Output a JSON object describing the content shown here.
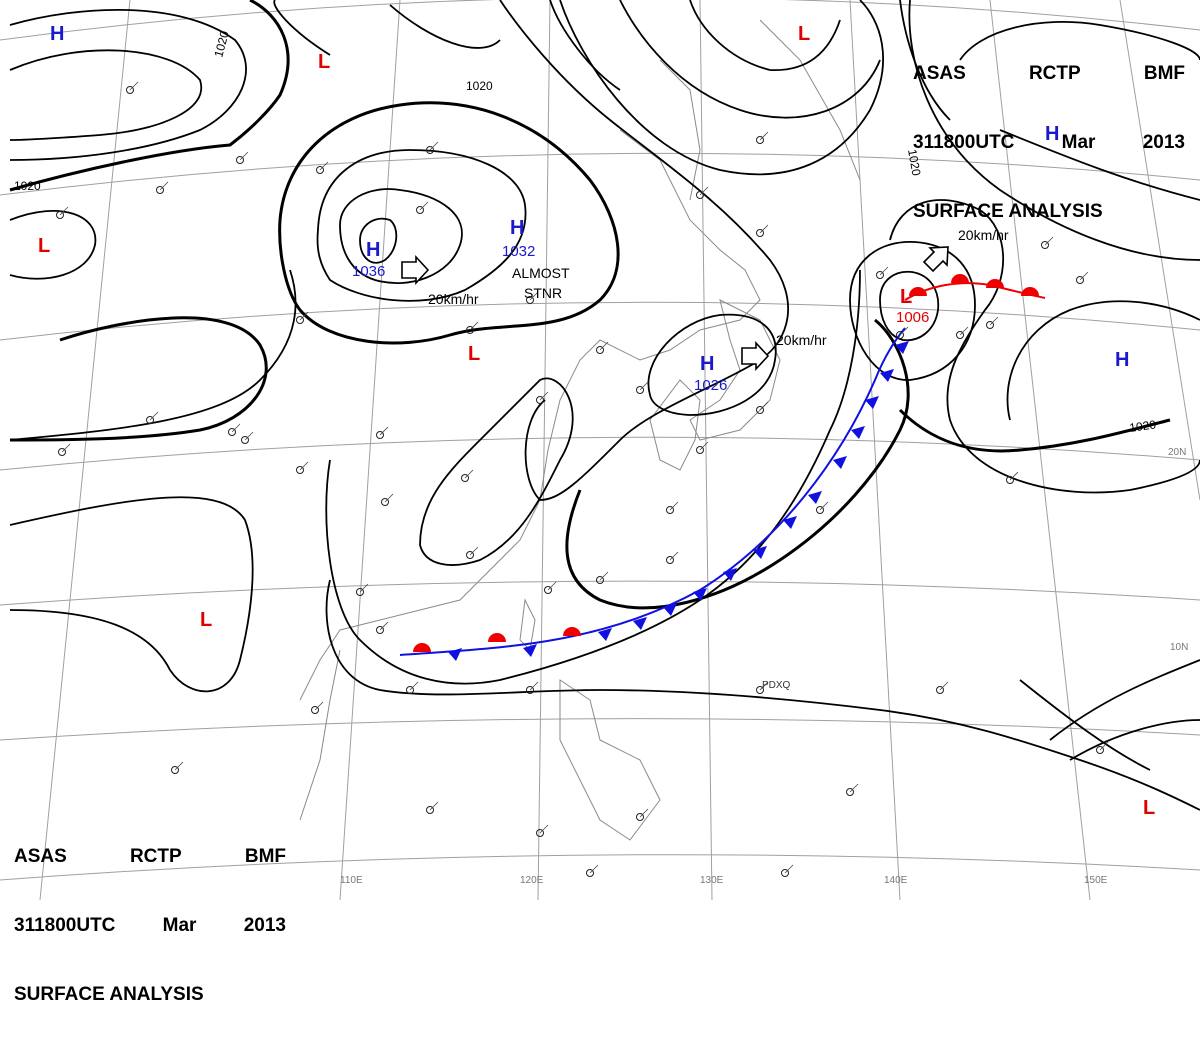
{
  "header": {
    "line1": [
      "ASAS",
      "RCTP",
      "BMF"
    ],
    "line2": [
      "311800UTC",
      "Mar",
      "2013"
    ],
    "line3": "SURFACE ANALYSIS"
  },
  "colors": {
    "high": "#1a1acc",
    "low": "#e00000",
    "isobar": "#000000",
    "cold_front": "#1010e0",
    "warm_front": "#ee0000",
    "grid": "#9a9a9a",
    "coast": "#888888"
  },
  "pressure_centers": [
    {
      "type": "H",
      "value": "1036"
    },
    {
      "type": "H",
      "value": "1032"
    },
    {
      "type": "H",
      "value": "1026"
    },
    {
      "type": "L",
      "value": "1006"
    },
    {
      "type": "H",
      "value": ""
    },
    {
      "type": "H",
      "value": ""
    },
    {
      "type": "H",
      "value": ""
    },
    {
      "type": "L",
      "value": ""
    },
    {
      "type": "L",
      "value": ""
    },
    {
      "type": "L",
      "value": ""
    },
    {
      "type": "L",
      "value": ""
    },
    {
      "type": "L",
      "value": ""
    },
    {
      "type": "L",
      "value": ""
    }
  ],
  "isobar_labels": [
    "1020",
    "1020",
    "1020",
    "1020",
    "1020"
  ],
  "motion_labels": [
    "20km/hr",
    "20km/hr",
    "20km/hr"
  ],
  "annotations": [
    "ALMOST",
    "STNR"
  ],
  "longitude_labels": [
    "110E",
    "120E",
    "130E",
    "140E",
    "150E"
  ],
  "latitude_labels": [
    "20N",
    "10N"
  ],
  "station_codes": [
    "PDXQ"
  ]
}
